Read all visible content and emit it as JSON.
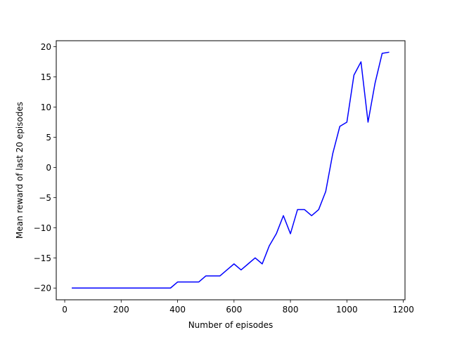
{
  "chart_data": {
    "type": "line",
    "title": "",
    "xlabel": "Number of episodes",
    "ylabel": "Mean reward of last 20 episodes",
    "xlim": [
      -30,
      1206
    ],
    "ylim": [
      -21.95,
      21.0
    ],
    "xticks": [
      0,
      200,
      400,
      600,
      800,
      1000,
      1200
    ],
    "yticks": [
      -20,
      -15,
      -10,
      -5,
      0,
      5,
      10,
      15,
      20
    ],
    "xtick_labels": [
      "0",
      "200",
      "400",
      "600",
      "800",
      "1000",
      "1200"
    ],
    "ytick_labels": [
      "−20",
      "−15",
      "−10",
      "−5",
      "0",
      "5",
      "10",
      "15",
      "20"
    ],
    "grid": false,
    "series": [
      {
        "color": "#0000ff",
        "x": [
          25,
          50,
          75,
          100,
          125,
          150,
          175,
          200,
          225,
          250,
          275,
          300,
          325,
          350,
          375,
          400,
          425,
          450,
          475,
          500,
          525,
          550,
          575,
          600,
          625,
          650,
          675,
          700,
          725,
          750,
          775,
          800,
          825,
          850,
          875,
          900,
          925,
          950,
          975,
          1000,
          1025,
          1050,
          1075,
          1100,
          1125,
          1150
        ],
        "y": [
          -20,
          -20,
          -20,
          -20,
          -20,
          -20,
          -20,
          -20,
          -20,
          -20,
          -20,
          -20,
          -20,
          -20,
          -20,
          -19,
          -19,
          -19,
          -19,
          -18,
          -18,
          -18,
          -17,
          -16,
          -17,
          -16,
          -15,
          -16,
          -13,
          -11,
          -8,
          -11,
          -7,
          -7,
          -8,
          -7,
          -4,
          2.3,
          6.8,
          7.5,
          15.3,
          17.5,
          7.5,
          14,
          18.9,
          19.1
        ]
      }
    ]
  }
}
